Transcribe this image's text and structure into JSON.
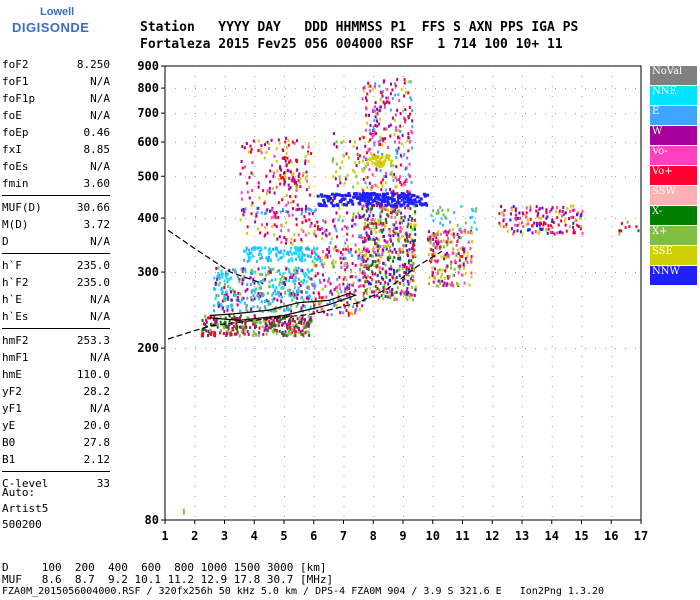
{
  "logo": {
    "line1": "Lowell",
    "line2": "DIGISONDE"
  },
  "header": {
    "row1": "Station   YYYY DAY   DDD HHMMSS P1  FFS S AXN PPS IGA PS",
    "row2": "Fortaleza 2015 Fev25 056 004000 RSF   1 714 100 10+ 11"
  },
  "params": {
    "group1": [
      {
        "k": "foF2",
        "v": "8.250"
      },
      {
        "k": "foF1",
        "v": "N/A"
      },
      {
        "k": "foF1p",
        "v": "N/A"
      },
      {
        "k": "foE",
        "v": "N/A"
      },
      {
        "k": "foEp",
        "v": "0.46"
      },
      {
        "k": "fxI",
        "v": "8.85"
      },
      {
        "k": "foEs",
        "v": "N/A"
      },
      {
        "k": "fmin",
        "v": "3.60"
      }
    ],
    "group2": [
      {
        "k": "MUF(D)",
        "v": "30.66"
      },
      {
        "k": "M(D)",
        "v": "3.72"
      },
      {
        "k": "D",
        "v": "N/A"
      }
    ],
    "group3": [
      {
        "k": "h`F",
        "v": "235.0"
      },
      {
        "k": "h`F2",
        "v": "235.0"
      },
      {
        "k": "h`E",
        "v": "N/A"
      },
      {
        "k": "h`Es",
        "v": "N/A"
      }
    ],
    "group4": [
      {
        "k": "hmF2",
        "v": "253.3"
      },
      {
        "k": "hmF1",
        "v": "N/A"
      },
      {
        "k": "hmE",
        "v": "110.0"
      },
      {
        "k": "yF2",
        "v": "28.2"
      },
      {
        "k": "yF1",
        "v": "N/A"
      },
      {
        "k": "yE",
        "v": "20.0"
      },
      {
        "k": "B0",
        "v": "27.8"
      },
      {
        "k": "B1",
        "v": "2.12"
      }
    ],
    "group5": [
      {
        "k": "C-level",
        "v": "33"
      }
    ]
  },
  "auto": {
    "line1": "Auto:",
    "line2": "Artist5",
    "line3": "500200"
  },
  "footer": {
    "d_row": "D     100  200  400  600  800 1000 1500 3000 [km]",
    "muf_row": "MUF   8.6  8.7  9.2 10.1 11.2 12.9 17.8 30.7 [MHz]",
    "file_row": "FZA0M_2015056004000.RSF / 320fx256h 50 kHz 5.0 km / DPS-4 FZA0M 904 / 3.9 S 321.6 E   Ion2Png 1.3.20"
  },
  "legend": [
    {
      "label": "NoVal",
      "color": "#808080"
    },
    {
      "label": "NNE",
      "color": "#00e5ff"
    },
    {
      "label": "E",
      "color": "#3ea6ff"
    },
    {
      "label": "W",
      "color": "#a8009a"
    },
    {
      "label": "Vo-",
      "color": "#ff40c0"
    },
    {
      "label": "Vo+",
      "color": "#ff0030"
    },
    {
      "label": "SSW",
      "color": "#ffb0b0"
    },
    {
      "label": "X-",
      "color": "#008000"
    },
    {
      "label": "X+",
      "color": "#80c040"
    },
    {
      "label": "SSE",
      "color": "#d0d000"
    },
    {
      "label": "NNW",
      "color": "#2020ff"
    }
  ],
  "chart_data": {
    "type": "scatter",
    "xlabel": "",
    "ylabel": "",
    "xlim": [
      1,
      17
    ],
    "ylim": [
      80,
      900
    ],
    "yscale": "log",
    "xticks": [
      1,
      2,
      3,
      4,
      5,
      6,
      7,
      8,
      9,
      10,
      11,
      12,
      13,
      14,
      15,
      16,
      17
    ],
    "yticks": [
      80,
      200,
      300,
      400,
      500,
      600,
      700,
      800,
      900
    ],
    "clusters": [
      {
        "x": [
          2.2,
          5.9
        ],
        "y": [
          215,
          240
        ],
        "colors": [
          "#ff0030",
          "#008000",
          "#80c040",
          "#a8009a"
        ],
        "n": 320
      },
      {
        "x": [
          2.6,
          6.0
        ],
        "y": [
          245,
          310
        ],
        "colors": [
          "#3ea6ff",
          "#00e5ff",
          "#80c040",
          "#a8009a"
        ],
        "n": 380
      },
      {
        "x": [
          3.6,
          6.1
        ],
        "y": [
          320,
          345
        ],
        "colors": [
          "#3ea6ff",
          "#00e5ff"
        ],
        "n": 120
      },
      {
        "x": [
          3.3,
          6.1
        ],
        "y": [
          410,
          425
        ],
        "colors": [
          "#3ea6ff",
          "#a8009a"
        ],
        "n": 40
      },
      {
        "x": [
          3.5,
          5.9
        ],
        "y": [
          350,
          620
        ],
        "colors": [
          "#a8009a",
          "#ff40c0",
          "#d0d000",
          "#ff0030"
        ],
        "n": 180
      },
      {
        "x": [
          4.8,
          5.8
        ],
        "y": [
          470,
          560
        ],
        "colors": [
          "#d0d000",
          "#ff0030",
          "#a8009a"
        ],
        "n": 60
      },
      {
        "x": [
          5.9,
          7.6
        ],
        "y": [
          240,
          400
        ],
        "colors": [
          "#a8009a",
          "#ff0030",
          "#d0d000",
          "#ff40c0",
          "#3ea6ff"
        ],
        "n": 240
      },
      {
        "x": [
          6.6,
          7.6
        ],
        "y": [
          400,
          640
        ],
        "colors": [
          "#a8009a",
          "#80c040",
          "#d0d000"
        ],
        "n": 70
      },
      {
        "x": [
          7.6,
          9.4
        ],
        "y": [
          260,
          440
        ],
        "colors": [
          "#ff0030",
          "#2020ff",
          "#a8009a",
          "#ff40c0",
          "#008000",
          "#80c040",
          "#d0d000"
        ],
        "n": 520
      },
      {
        "x": [
          7.5,
          9.3
        ],
        "y": [
          440,
          460
        ],
        "colors": [
          "#2020ff"
        ],
        "n": 90
      },
      {
        "x": [
          7.6,
          9.3
        ],
        "y": [
          460,
          850
        ],
        "colors": [
          "#a8009a",
          "#ff40c0",
          "#d0d000",
          "#ff0030",
          "#3ea6ff"
        ],
        "n": 260
      },
      {
        "x": [
          7.7,
          8.6
        ],
        "y": [
          530,
          565
        ],
        "colors": [
          "#d0d000"
        ],
        "n": 50
      },
      {
        "x": [
          9.8,
          11.3
        ],
        "y": [
          280,
          380
        ],
        "colors": [
          "#ff0030",
          "#ff40c0",
          "#d0d000",
          "#a8009a",
          "#80c040"
        ],
        "n": 200
      },
      {
        "x": [
          9.8,
          11.5
        ],
        "y": [
          380,
          430
        ],
        "colors": [
          "#3ea6ff",
          "#00e5ff",
          "#80c040"
        ],
        "n": 30
      },
      {
        "x": [
          12.2,
          15.0
        ],
        "y": [
          370,
          430
        ],
        "colors": [
          "#2020ff",
          "#a8009a",
          "#ff0030",
          "#d0d000",
          "#ff40c0"
        ],
        "n": 160
      },
      {
        "x": [
          16.2,
          16.9
        ],
        "y": [
          365,
          395
        ],
        "colors": [
          "#008000",
          "#80c040",
          "#ff0030"
        ],
        "n": 10
      }
    ],
    "blue_trace": {
      "x": [
        6.1,
        9.8
      ],
      "y": [
        430,
        460
      ]
    },
    "profile_dashed": [
      [
        1.1,
        210
      ],
      [
        2.5,
        225
      ],
      [
        4,
        232
      ],
      [
        6,
        240
      ],
      [
        7.5,
        255
      ],
      [
        8.5,
        275
      ],
      [
        9.5,
        310
      ],
      [
        10.3,
        335
      ]
    ],
    "profile_dashed_upper": [
      [
        1.1,
        375
      ],
      [
        2,
        340
      ],
      [
        3.2,
        300
      ],
      [
        4.3,
        282
      ]
    ],
    "profile_solid": [
      [
        2.5,
        238
      ],
      [
        3.3,
        240
      ],
      [
        4.5,
        245
      ],
      [
        5.5,
        255
      ],
      [
        6.5,
        258
      ],
      [
        7.2,
        268
      ],
      [
        7.4,
        265
      ],
      [
        6.5,
        252
      ],
      [
        5,
        238
      ],
      [
        3.5,
        232
      ],
      [
        2.5,
        235
      ]
    ]
  }
}
